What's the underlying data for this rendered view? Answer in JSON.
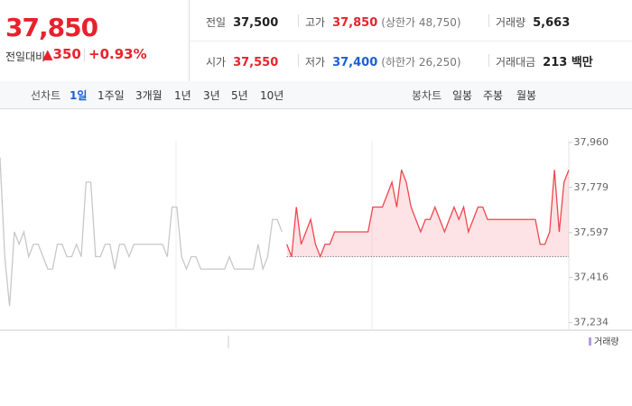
{
  "header": {
    "price": "37,850",
    "change_label": "전일대비",
    "change": "350",
    "change_pct": "+0.93%",
    "stats": [
      {
        "label": "전일",
        "value": "37,500",
        "color": "#222"
      },
      {
        "label": "고가",
        "value": "37,850",
        "extra": "(상한가 48,750)",
        "color": "#e8222d"
      },
      {
        "label": "거래량",
        "value": "5,663",
        "color": "#222"
      },
      {
        "label": "시가",
        "value": "37,550",
        "color": "#e8222d"
      },
      {
        "label": "저가",
        "value": "37,400",
        "extra": "(하한가 26,250)",
        "color": "#1a5fd6"
      },
      {
        "label": "거래대금",
        "value": "213 백만",
        "color": "#222"
      }
    ]
  },
  "tabs": {
    "line_label": "선차트",
    "line": [
      "1일",
      "1주일",
      "3개월",
      "1년",
      "3년",
      "5년",
      "10년"
    ],
    "candle_label": "봉차트",
    "candle": [
      "일봉",
      "주봉",
      "월봉"
    ]
  },
  "chart_data": {
    "type": "line",
    "volume_label": "거래량",
    "baseline": 37500,
    "ylim": [
      37200,
      38080
    ],
    "yticks": [
      {
        "value": 37960,
        "label": "37,960"
      },
      {
        "value": 37779,
        "label": "37,779"
      },
      {
        "value": 37597,
        "label": "37,597"
      },
      {
        "value": 37416,
        "label": "37,416"
      },
      {
        "value": 37234,
        "label": "37,234"
      }
    ],
    "series": [
      {
        "color": "#c8c8c8",
        "fill": false,
        "values": [
          37900,
          37500,
          37300,
          37600,
          37550,
          37600,
          37500,
          37550,
          37550,
          37500,
          37450,
          37450,
          37550,
          37550,
          37500,
          37500,
          37550,
          37500,
          37800,
          37800,
          37500,
          37500,
          37550,
          37550,
          37450,
          37550,
          37550,
          37500,
          37550,
          37550,
          37550,
          37550,
          37550,
          37550,
          37550,
          37500,
          37700,
          37700,
          37500,
          37450,
          37500,
          37500,
          37450,
          37450,
          37450,
          37450,
          37450,
          37450,
          37500,
          37450,
          37450,
          37450,
          37450,
          37450,
          37550,
          37450,
          37500,
          37650,
          37650,
          37600,
          null,
          null,
          null,
          null,
          null,
          null,
          null,
          null,
          null,
          null,
          null,
          null,
          null,
          null,
          null,
          null,
          null,
          null,
          null,
          null,
          null,
          null,
          null,
          null,
          null,
          null,
          null,
          null,
          null,
          null,
          null,
          null,
          null,
          null,
          null,
          null,
          null,
          null,
          null,
          null,
          null,
          null,
          null,
          null,
          null,
          null,
          null,
          null,
          null,
          null,
          null,
          null,
          null,
          null,
          null,
          null,
          null,
          null,
          null,
          null
        ]
      },
      {
        "color": "#f0464f",
        "fill": true,
        "values": [
          null,
          null,
          null,
          null,
          null,
          null,
          null,
          null,
          null,
          null,
          null,
          null,
          null,
          null,
          null,
          null,
          null,
          null,
          null,
          null,
          null,
          null,
          null,
          null,
          null,
          null,
          null,
          null,
          null,
          null,
          null,
          null,
          null,
          null,
          null,
          null,
          null,
          null,
          null,
          null,
          null,
          null,
          null,
          null,
          null,
          null,
          null,
          null,
          null,
          null,
          null,
          null,
          null,
          null,
          null,
          null,
          null,
          null,
          null,
          null,
          37550,
          37500,
          37700,
          37550,
          37600,
          37650,
          37550,
          37500,
          37550,
          37550,
          37600,
          37600,
          37600,
          37600,
          37600,
          37600,
          37600,
          37600,
          37700,
          37700,
          37700,
          37750,
          37800,
          37700,
          37850,
          37800,
          37700,
          37650,
          37600,
          37650,
          37650,
          37700,
          37650,
          37600,
          37650,
          37700,
          37650,
          37700,
          37600,
          37650,
          37700,
          37700,
          37650,
          37650,
          37650,
          37650,
          37650,
          37650,
          37650,
          37650,
          37650,
          37650,
          37650,
          37550,
          37550,
          37600,
          37850,
          37600,
          37800,
          37850
        ]
      }
    ]
  }
}
